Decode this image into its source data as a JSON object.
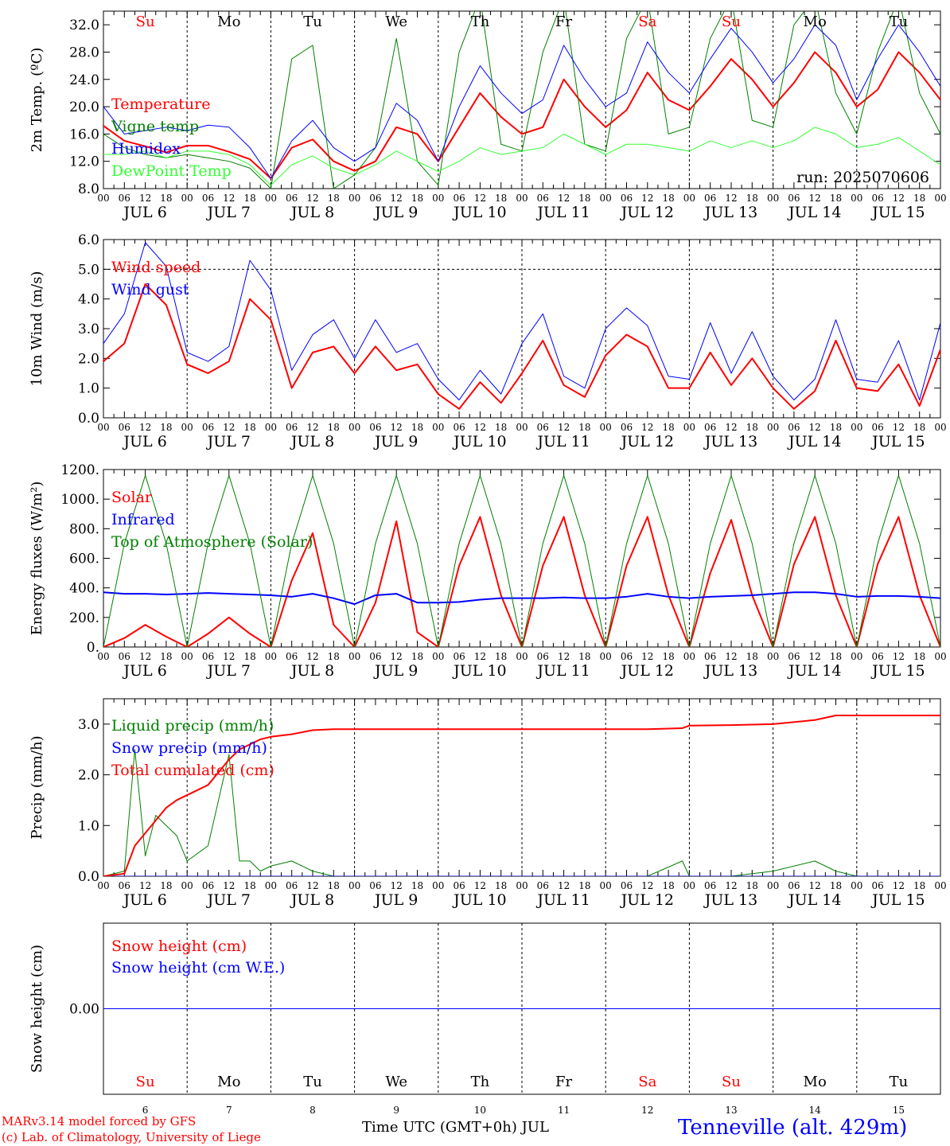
{
  "footer": {
    "credit_line1": "MARv3.14 model forced by GFS",
    "credit_line2": "(c) Lab. of Climatology, University of Liege",
    "xlabel": "Time UTC (GMT+0h) JUL",
    "station": "Tenneville (alt. 429m)"
  },
  "colors": {
    "red": "#ff0000",
    "blue": "#0000ff",
    "green": "#008000",
    "lightgreen": "#33ff33",
    "black": "#000000"
  },
  "hour_ticks": [
    "00",
    "06",
    "12",
    "18"
  ],
  "chart_data": [
    {
      "type": "line",
      "ylabel": "2m Temp. (ºC)",
      "ylim": [
        8,
        34
      ],
      "yticks": [
        "8.0",
        "12.0",
        "16.0",
        "20.0",
        "24.0",
        "28.0",
        "32.0"
      ],
      "day_names": [
        "Su",
        "Mo",
        "Tu",
        "We",
        "Th",
        "Fr",
        "Sa",
        "Su",
        "Mo",
        "Tu"
      ],
      "day_colors": [
        "#ff0000",
        "#000000",
        "#000000",
        "#000000",
        "#000000",
        "#000000",
        "#ff0000",
        "#ff0000",
        "#000000",
        "#000000"
      ],
      "date_labels": [
        "JUL  6",
        "JUL  7",
        "JUL  8",
        "JUL  9",
        "JUL 10",
        "JUL 11",
        "JUL 12",
        "JUL 13",
        "JUL 14",
        "JUL 15"
      ],
      "annotation": "run: 2025070606",
      "x_hours": [
        0,
        6,
        12,
        18,
        24,
        30,
        36,
        42,
        48,
        54,
        60,
        66,
        72,
        78,
        84,
        90,
        96,
        102,
        108,
        114,
        120,
        126,
        132,
        138,
        144,
        150,
        156,
        162,
        168,
        174,
        180,
        186,
        192,
        198,
        204,
        210,
        216,
        222,
        228,
        234,
        240
      ],
      "series": [
        {
          "name": "Temperature",
          "color": "#ff0000",
          "width": 2,
          "values": [
            17.2,
            15.0,
            14.2,
            13.3,
            14.3,
            14.3,
            13.4,
            12.3,
            9.5,
            14.0,
            15.2,
            12.0,
            10.6,
            12.0,
            17.0,
            16.0,
            12.0,
            17.0,
            22.0,
            18.5,
            16.0,
            17.0,
            24.0,
            20.0,
            17.0,
            19.5,
            25.0,
            21.0,
            19.5,
            23.0,
            27.0,
            24.0,
            20.0,
            23.5,
            28.0,
            25.0,
            20.0,
            22.5,
            28.0,
            25.0,
            21.0
          ]
        },
        {
          "name": "Vigne temp",
          "color": "#008000",
          "width": 1,
          "values": [
            16.0,
            14.0,
            13.0,
            12.5,
            13.0,
            12.5,
            12.0,
            11.0,
            8.0,
            27.0,
            29.0,
            8.0,
            10.0,
            14.0,
            30.0,
            12.0,
            8.5,
            28.0,
            36.0,
            14.5,
            13.5,
            28.0,
            36.0,
            14.5,
            13.5,
            30.0,
            36.0,
            16.0,
            17.0,
            30.0,
            36.0,
            18.0,
            17.0,
            32.0,
            36.0,
            22.0,
            16.0,
            28.0,
            36.0,
            22.0,
            16.0
          ]
        },
        {
          "name": "Humidex",
          "color": "#0000ff",
          "width": 1,
          "values": [
            20.0,
            16.0,
            16.5,
            17.0,
            16.5,
            17.3,
            17.0,
            14.0,
            9.5,
            15.0,
            18.0,
            14.0,
            12.0,
            14.0,
            20.5,
            18.0,
            12.0,
            20.0,
            26.0,
            22.0,
            19.0,
            21.0,
            29.0,
            24.0,
            20.0,
            22.0,
            29.5,
            25.0,
            22.0,
            27.0,
            31.5,
            28.0,
            23.5,
            27.0,
            32.0,
            29.0,
            21.0,
            27.0,
            32.0,
            28.0,
            23.0
          ]
        },
        {
          "name": "DewPoint Temp",
          "color": "#33ff33",
          "width": 1,
          "values": [
            13.0,
            13.0,
            13.5,
            12.5,
            13.5,
            13.5,
            13.0,
            11.5,
            8.5,
            11.5,
            12.8,
            11.0,
            10.0,
            11.5,
            13.5,
            12.0,
            10.5,
            12.0,
            14.0,
            13.0,
            13.5,
            14.0,
            16.0,
            14.5,
            13.0,
            14.5,
            14.5,
            14.0,
            13.5,
            15.0,
            14.0,
            15.0,
            14.0,
            15.0,
            17.0,
            16.0,
            14.0,
            14.5,
            15.5,
            13.5,
            11.5
          ]
        }
      ]
    },
    {
      "type": "line",
      "ylabel": "10m Wind (m/s)",
      "ylim": [
        0,
        6
      ],
      "yticks": [
        "0.0",
        "1.0",
        "2.0",
        "3.0",
        "4.0",
        "5.0",
        "6.0"
      ],
      "date_labels": [
        "JUL  6",
        "JUL  7",
        "JUL  8",
        "JUL  9",
        "JUL 10",
        "JUL 11",
        "JUL 12",
        "JUL 13",
        "JUL 14",
        "JUL 15"
      ],
      "reference_line": 5.0,
      "x_hours": [
        0,
        6,
        12,
        18,
        24,
        30,
        36,
        42,
        48,
        54,
        60,
        66,
        72,
        78,
        84,
        90,
        96,
        102,
        108,
        114,
        120,
        126,
        132,
        138,
        144,
        150,
        156,
        162,
        168,
        174,
        180,
        186,
        192,
        198,
        204,
        210,
        216,
        222,
        228,
        234,
        240
      ],
      "series": [
        {
          "name": "Wind speed",
          "color": "#ff0000",
          "width": 2,
          "values": [
            1.9,
            2.5,
            4.5,
            3.8,
            1.8,
            1.5,
            1.9,
            4.0,
            3.3,
            1.0,
            2.2,
            2.4,
            1.5,
            2.4,
            1.6,
            1.8,
            0.8,
            0.3,
            1.2,
            0.5,
            1.5,
            2.6,
            1.1,
            0.7,
            2.1,
            2.8,
            2.4,
            1.0,
            1.0,
            2.2,
            1.1,
            2.0,
            1.0,
            0.3,
            0.9,
            2.6,
            1.0,
            0.9,
            1.8,
            0.4,
            2.3
          ]
        },
        {
          "name": "Wind gust",
          "color": "#0000ff",
          "width": 1,
          "values": [
            2.5,
            3.5,
            5.9,
            5.1,
            2.2,
            1.9,
            2.4,
            5.3,
            4.3,
            1.6,
            2.8,
            3.3,
            2.0,
            3.3,
            2.2,
            2.5,
            1.3,
            0.6,
            1.6,
            0.8,
            2.5,
            3.5,
            1.4,
            1.0,
            3.0,
            3.7,
            3.1,
            1.4,
            1.3,
            3.2,
            1.5,
            2.9,
            1.4,
            0.6,
            1.3,
            3.3,
            1.3,
            1.2,
            2.6,
            0.6,
            3.2
          ]
        }
      ]
    },
    {
      "type": "line",
      "ylabel": "Energy fluxes (W/m²)",
      "ylim": [
        0,
        1200
      ],
      "yticks": [
        "0.",
        "200.",
        "400.",
        "600.",
        "800.",
        "1000.",
        "1200."
      ],
      "date_labels": [
        "JUL  6",
        "JUL  7",
        "JUL  8",
        "JUL  9",
        "JUL 10",
        "JUL 11",
        "JUL 12",
        "JUL 13",
        "JUL 14",
        "JUL 15"
      ],
      "x_hours": [
        0,
        6,
        12,
        18,
        24,
        30,
        36,
        42,
        48,
        54,
        60,
        66,
        72,
        78,
        84,
        90,
        96,
        102,
        108,
        114,
        120,
        126,
        132,
        138,
        144,
        150,
        156,
        162,
        168,
        174,
        180,
        186,
        192,
        198,
        204,
        210,
        216,
        222,
        228,
        234,
        240
      ],
      "series": [
        {
          "name": "Solar",
          "color": "#ff0000",
          "width": 2,
          "values": [
            0,
            60,
            150,
            70,
            0,
            90,
            200,
            90,
            0,
            450,
            770,
            150,
            0,
            300,
            850,
            100,
            0,
            550,
            880,
            350,
            0,
            550,
            880,
            350,
            0,
            550,
            880,
            350,
            0,
            500,
            860,
            350,
            0,
            560,
            880,
            350,
            0,
            560,
            880,
            350,
            0
          ]
        },
        {
          "name": "Infrared",
          "color": "#0000ff",
          "width": 2,
          "values": [
            370,
            360,
            360,
            355,
            360,
            365,
            360,
            355,
            350,
            340,
            360,
            330,
            290,
            350,
            360,
            300,
            300,
            305,
            320,
            330,
            330,
            330,
            335,
            330,
            330,
            340,
            360,
            340,
            330,
            340,
            345,
            350,
            360,
            370,
            370,
            360,
            340,
            345,
            345,
            340,
            330
          ]
        },
        {
          "name": "Top of Atmosphere (Solar)",
          "color": "#008000",
          "width": 1,
          "values": [
            0,
            700,
            1160,
            700,
            0,
            700,
            1160,
            700,
            0,
            700,
            1160,
            700,
            0,
            700,
            1160,
            700,
            0,
            700,
            1160,
            700,
            0,
            700,
            1160,
            700,
            0,
            700,
            1160,
            700,
            0,
            700,
            1160,
            700,
            0,
            700,
            1160,
            700,
            0,
            700,
            1160,
            700,
            0
          ]
        }
      ]
    },
    {
      "type": "line",
      "ylabel": "Precip (mm/h)",
      "ylim": [
        0,
        3.5
      ],
      "yticks": [
        "0.0",
        "1.0",
        "2.0",
        "3.0"
      ],
      "date_labels": [
        "JUL  6",
        "JUL  7",
        "JUL  8",
        "JUL  9",
        "JUL 10",
        "JUL 11",
        "JUL 12",
        "JUL 13",
        "JUL 14",
        "JUL 15"
      ],
      "x_hours": [
        0,
        6,
        9,
        12,
        15,
        18,
        21,
        24,
        30,
        36,
        39,
        42,
        45,
        48,
        54,
        60,
        66,
        72,
        84,
        96,
        108,
        120,
        132,
        144,
        156,
        166,
        168,
        180,
        192,
        204,
        210,
        216,
        228,
        240
      ],
      "series": [
        {
          "name": "Liquid precip (mm/h)",
          "color": "#008000",
          "width": 1,
          "values": [
            0,
            0.1,
            2.5,
            0.4,
            1.2,
            1.0,
            0.8,
            0.3,
            0.6,
            2.4,
            0.3,
            0.3,
            0.1,
            0.2,
            0.3,
            0.1,
            0,
            0,
            0,
            0,
            0,
            0,
            0,
            0,
            0,
            0.3,
            0,
            0,
            0.1,
            0.3,
            0.1,
            0,
            0,
            0
          ]
        },
        {
          "name": "Snow precip (mm/h)",
          "color": "#0000ff",
          "width": 1,
          "values": [
            0,
            0,
            0,
            0,
            0,
            0,
            0,
            0,
            0,
            0,
            0,
            0,
            0,
            0,
            0,
            0,
            0,
            0,
            0,
            0,
            0,
            0,
            0,
            0,
            0,
            0,
            0,
            0,
            0,
            0,
            0,
            0,
            0,
            0
          ]
        },
        {
          "name": "Total cumulated (cm)",
          "color": "#ff0000",
          "width": 2,
          "values": [
            0,
            0.05,
            0.6,
            0.85,
            1.1,
            1.35,
            1.5,
            1.6,
            1.8,
            2.3,
            2.5,
            2.6,
            2.7,
            2.75,
            2.8,
            2.88,
            2.9,
            2.9,
            2.9,
            2.9,
            2.9,
            2.9,
            2.9,
            2.9,
            2.9,
            2.92,
            2.97,
            2.98,
            3.0,
            3.08,
            3.17,
            3.17,
            3.17,
            3.17
          ]
        }
      ]
    },
    {
      "type": "line",
      "ylabel": "Snow height (cm)",
      "ylim": [
        -1,
        1
      ],
      "yticks": [
        "0.00"
      ],
      "day_names": [
        "Su",
        "Mo",
        "Tu",
        "We",
        "Th",
        "Fr",
        "Sa",
        "Su",
        "Mo",
        "Tu"
      ],
      "day_colors": [
        "#ff0000",
        "#000000",
        "#000000",
        "#000000",
        "#000000",
        "#000000",
        "#ff0000",
        "#ff0000",
        "#000000",
        "#000000"
      ],
      "day_numbers": [
        "6",
        "7",
        "8",
        "9",
        "10",
        "11",
        "12",
        "13",
        "14",
        "15"
      ],
      "x_hours": [
        0,
        240
      ],
      "series": [
        {
          "name": "Snow height (cm)",
          "color": "#ff0000",
          "width": 1,
          "values": [
            0,
            0
          ]
        },
        {
          "name": "Snow height (cm W.E.)",
          "color": "#0000ff",
          "width": 1,
          "values": [
            0,
            0
          ]
        }
      ]
    }
  ]
}
